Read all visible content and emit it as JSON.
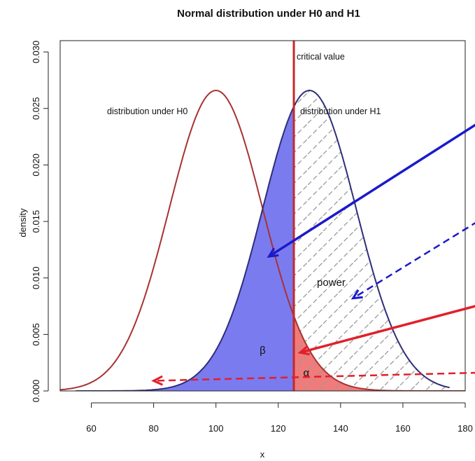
{
  "chart_data": {
    "type": "area",
    "title": "Normal distribution under H0 and H1",
    "xlabel": "x",
    "ylabel": "density",
    "xlim": [
      50,
      180
    ],
    "ylim": [
      0,
      0.031
    ],
    "x_ticks": [
      "60",
      "80",
      "100",
      "120",
      "140",
      "160",
      "180"
    ],
    "y_ticks": [
      "0.000",
      "0.005",
      "0.010",
      "0.015",
      "0.020",
      "0.025",
      "0.030"
    ],
    "series": [
      {
        "name": "distribution under H0",
        "distribution": "normal",
        "mean": 100,
        "sd": 15,
        "x_range": [
          50,
          180
        ],
        "color": "#a83232"
      },
      {
        "name": "distribution under H1",
        "distribution": "normal",
        "mean": 130,
        "sd": 15,
        "x_range": [
          55,
          175
        ],
        "color": "#2e2e7a"
      }
    ],
    "critical_value": {
      "label": "critical value",
      "x": 125,
      "color": "#c62828"
    },
    "regions": [
      {
        "name": "β",
        "curve": "H1",
        "from": 50,
        "to": 125,
        "fill": "#7b7bf0"
      },
      {
        "name": "α",
        "curve": "H0",
        "from": 125,
        "to": 180,
        "fill": "#f07b7b"
      },
      {
        "name": "power",
        "curve": "H1",
        "from": 125,
        "to": 175,
        "fill": "hatched"
      }
    ],
    "region_labels": [
      {
        "text": "β",
        "x": 115,
        "y": 0.0033
      },
      {
        "text": "power",
        "x": 137,
        "y": 0.0093
      },
      {
        "text": "α",
        "x": 129,
        "y": 0.0013
      }
    ],
    "annotations": [
      {
        "text": "distribution under H0",
        "x": 78,
        "y": 0.0245
      },
      {
        "text": "distribution under H1",
        "x": 140,
        "y": 0.0245
      }
    ],
    "pointer_arrows": [
      {
        "points_to": "β",
        "tip": [
          117,
          0.0119
        ],
        "style": "solid",
        "color": "#1a1acc"
      },
      {
        "points_to": "power",
        "tip": [
          144,
          0.0082
        ],
        "style": "dashed",
        "color": "#1a1acc"
      },
      {
        "points_to": "α",
        "tip": [
          127,
          0.0034
        ],
        "style": "solid",
        "color": "#e0202a"
      },
      {
        "points_to": "H0 tail",
        "tip": [
          80,
          0.0009
        ],
        "style": "dashed",
        "color": "#e0202a"
      }
    ],
    "grid": false,
    "legend": "none"
  }
}
